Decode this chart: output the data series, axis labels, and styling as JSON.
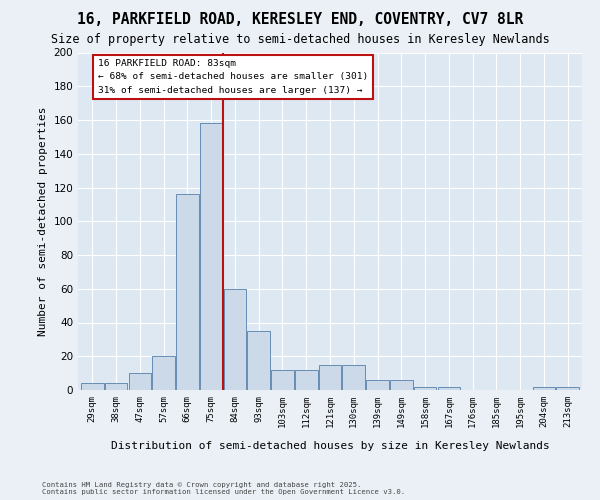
{
  "title": "16, PARKFIELD ROAD, KERESLEY END, COVENTRY, CV7 8LR",
  "subtitle": "Size of property relative to semi-detached houses in Keresley Newlands",
  "xlabel": "Distribution of semi-detached houses by size in Keresley Newlands",
  "ylabel": "Number of semi-detached properties",
  "bin_labels": [
    "29sqm",
    "38sqm",
    "47sqm",
    "57sqm",
    "66sqm",
    "75sqm",
    "84sqm",
    "93sqm",
    "103sqm",
    "112sqm",
    "121sqm",
    "130sqm",
    "139sqm",
    "149sqm",
    "158sqm",
    "167sqm",
    "176sqm",
    "185sqm",
    "195sqm",
    "204sqm",
    "213sqm"
  ],
  "bar_heights": [
    4,
    4,
    10,
    20,
    116,
    158,
    60,
    35,
    12,
    12,
    15,
    15,
    6,
    6,
    2,
    2,
    0,
    0,
    0,
    2,
    2
  ],
  "bar_color": "#ccd9e8",
  "bar_edge_color": "#5580aa",
  "subject_vline_pos": 5.5,
  "subject_line_color": "#bb1111",
  "annotation_text": "16 PARKFIELD ROAD: 83sqm\n← 68% of semi-detached houses are smaller (301)\n31% of semi-detached houses are larger (137) →",
  "annotation_box_edgecolor": "#bb1111",
  "ylim": [
    0,
    200
  ],
  "yticks": [
    0,
    20,
    40,
    60,
    80,
    100,
    120,
    140,
    160,
    180,
    200
  ],
  "bg_color": "#dde8f2",
  "fig_bg_color": "#eaf0f6",
  "footer_text": "Contains HM Land Registry data © Crown copyright and database right 2025.\nContains public sector information licensed under the Open Government Licence v3.0."
}
